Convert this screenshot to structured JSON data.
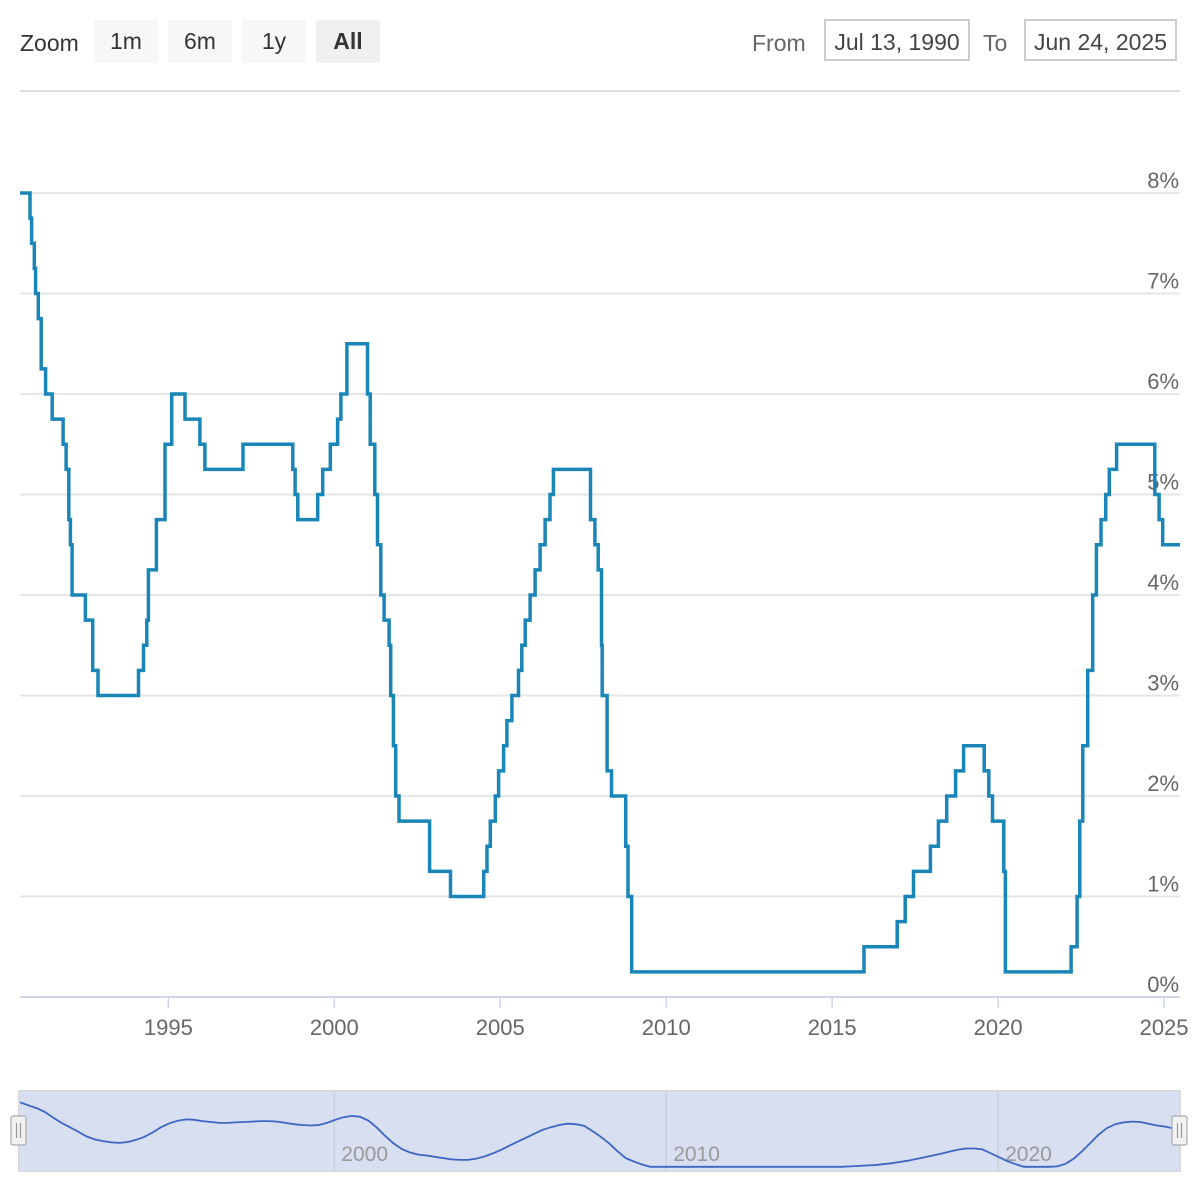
{
  "toolbar": {
    "zoom_label": "Zoom",
    "zoom_buttons": [
      "1m",
      "6m",
      "1y",
      "All"
    ],
    "active_zoom": "All",
    "from_label": "From",
    "from_value": "Jul 13, 1990",
    "to_label": "To",
    "to_value": "Jun 24, 2025"
  },
  "colors": {
    "line": "#1a86b8",
    "navigator_line": "#3b66c4",
    "navigator_fill": "#d4dcee"
  },
  "chart_data": {
    "type": "line",
    "title": "",
    "xlabel": "",
    "ylabel": "",
    "y_tick_labels": [
      "0%",
      "1%",
      "2%",
      "3%",
      "4%",
      "5%",
      "6%",
      "7%",
      "8%"
    ],
    "x_tick_labels": [
      "1995",
      "2000",
      "2005",
      "2010",
      "2015",
      "2020",
      "2025"
    ],
    "navigator_tick_labels": [
      "2000",
      "2010",
      "2020"
    ],
    "xlim": [
      1990.53,
      2025.48
    ],
    "ylim": [
      0,
      8.5
    ],
    "grid": true,
    "series": [
      {
        "points": [
          [
            1990.53,
            8.0
          ],
          [
            1990.83,
            7.75
          ],
          [
            1990.88,
            7.5
          ],
          [
            1990.96,
            7.25
          ],
          [
            1991.0,
            7.0
          ],
          [
            1991.08,
            6.75
          ],
          [
            1991.17,
            6.25
          ],
          [
            1991.3,
            6.0
          ],
          [
            1991.5,
            5.75
          ],
          [
            1991.83,
            5.5
          ],
          [
            1991.92,
            5.25
          ],
          [
            1992.0,
            4.75
          ],
          [
            1992.05,
            4.5
          ],
          [
            1992.1,
            4.0
          ],
          [
            1992.5,
            3.75
          ],
          [
            1992.72,
            3.25
          ],
          [
            1992.88,
            3.0
          ],
          [
            1994.1,
            3.25
          ],
          [
            1994.25,
            3.5
          ],
          [
            1994.35,
            3.75
          ],
          [
            1994.4,
            4.25
          ],
          [
            1994.64,
            4.75
          ],
          [
            1994.9,
            5.5
          ],
          [
            1995.1,
            6.0
          ],
          [
            1995.5,
            5.75
          ],
          [
            1995.95,
            5.5
          ],
          [
            1996.1,
            5.25
          ],
          [
            1997.25,
            5.5
          ],
          [
            1998.75,
            5.25
          ],
          [
            1998.82,
            5.0
          ],
          [
            1998.9,
            4.75
          ],
          [
            1999.5,
            5.0
          ],
          [
            1999.65,
            5.25
          ],
          [
            1999.88,
            5.5
          ],
          [
            2000.1,
            5.75
          ],
          [
            2000.2,
            6.0
          ],
          [
            2000.38,
            6.5
          ],
          [
            2001.0,
            6.0
          ],
          [
            2001.08,
            5.5
          ],
          [
            2001.22,
            5.0
          ],
          [
            2001.3,
            4.5
          ],
          [
            2001.4,
            4.0
          ],
          [
            2001.5,
            3.75
          ],
          [
            2001.65,
            3.5
          ],
          [
            2001.7,
            3.0
          ],
          [
            2001.78,
            2.5
          ],
          [
            2001.85,
            2.0
          ],
          [
            2001.95,
            1.75
          ],
          [
            2002.87,
            1.25
          ],
          [
            2003.5,
            1.0
          ],
          [
            2004.5,
            1.25
          ],
          [
            2004.6,
            1.5
          ],
          [
            2004.7,
            1.75
          ],
          [
            2004.85,
            2.0
          ],
          [
            2004.95,
            2.25
          ],
          [
            2005.1,
            2.5
          ],
          [
            2005.2,
            2.75
          ],
          [
            2005.35,
            3.0
          ],
          [
            2005.55,
            3.25
          ],
          [
            2005.65,
            3.5
          ],
          [
            2005.75,
            3.75
          ],
          [
            2005.9,
            4.0
          ],
          [
            2006.05,
            4.25
          ],
          [
            2006.2,
            4.5
          ],
          [
            2006.35,
            4.75
          ],
          [
            2006.5,
            5.0
          ],
          [
            2006.6,
            5.25
          ],
          [
            2007.72,
            4.75
          ],
          [
            2007.85,
            4.5
          ],
          [
            2007.95,
            4.25
          ],
          [
            2008.05,
            3.5
          ],
          [
            2008.07,
            3.0
          ],
          [
            2008.22,
            2.25
          ],
          [
            2008.35,
            2.0
          ],
          [
            2008.78,
            1.5
          ],
          [
            2008.85,
            1.0
          ],
          [
            2008.96,
            0.25
          ],
          [
            2015.96,
            0.5
          ],
          [
            2016.96,
            0.75
          ],
          [
            2017.2,
            1.0
          ],
          [
            2017.45,
            1.25
          ],
          [
            2017.96,
            1.5
          ],
          [
            2018.2,
            1.75
          ],
          [
            2018.45,
            2.0
          ],
          [
            2018.72,
            2.25
          ],
          [
            2018.96,
            2.5
          ],
          [
            2019.58,
            2.25
          ],
          [
            2019.72,
            2.0
          ],
          [
            2019.83,
            1.75
          ],
          [
            2020.17,
            1.25
          ],
          [
            2020.22,
            0.25
          ],
          [
            2022.2,
            0.5
          ],
          [
            2022.38,
            1.0
          ],
          [
            2022.46,
            1.75
          ],
          [
            2022.55,
            2.5
          ],
          [
            2022.7,
            3.25
          ],
          [
            2022.85,
            4.0
          ],
          [
            2022.96,
            4.5
          ],
          [
            2023.1,
            4.75
          ],
          [
            2023.24,
            5.0
          ],
          [
            2023.35,
            5.25
          ],
          [
            2023.57,
            5.5
          ],
          [
            2024.72,
            5.0
          ],
          [
            2024.85,
            4.75
          ],
          [
            2024.96,
            4.5
          ],
          [
            2025.48,
            4.5
          ]
        ]
      }
    ]
  }
}
